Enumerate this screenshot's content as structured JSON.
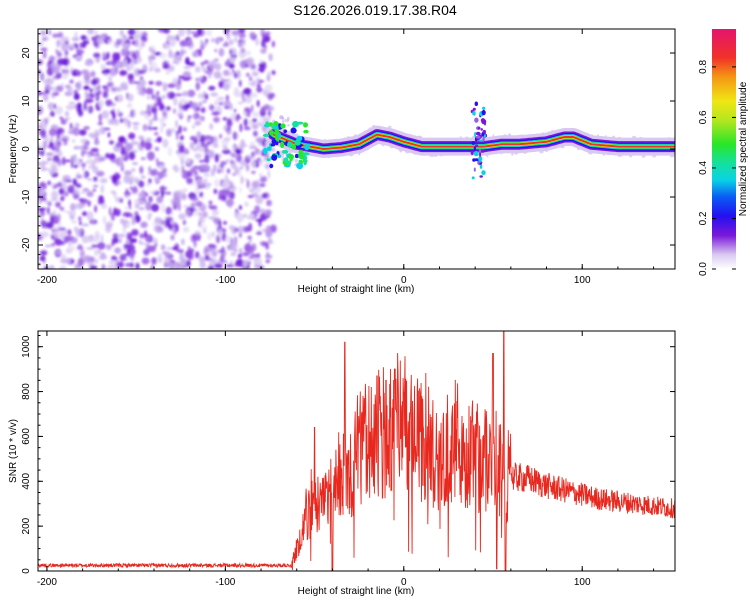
{
  "figure_title": "S126.2026.019.17.38.R04",
  "chart_data": [
    {
      "type": "heatmap",
      "title": "S126.2026.019.17.38.R04",
      "xlabel": "Height of straight line (km)",
      "ylabel": "Frequency (Hz)",
      "xlim": [
        -205,
        152
      ],
      "ylim": [
        -25,
        25
      ],
      "xticks": [
        -200,
        -100,
        0,
        100
      ],
      "xtick_labels": [
        "-200",
        "-100",
        "0",
        "100"
      ],
      "yticks": [
        -20,
        -10,
        0,
        10,
        20
      ],
      "ytick_labels": [
        "-20",
        "-10",
        "0",
        "10",
        "20"
      ],
      "noise_region_x": [
        -205,
        -73
      ],
      "ridge": {
        "x": [
          -73,
          -60,
          -45,
          -35,
          -25,
          -15,
          -8,
          0,
          10,
          20,
          30,
          35,
          40,
          45,
          55,
          65,
          80,
          90,
          95,
          105,
          120,
          135,
          150
        ],
        "freq": [
          3,
          1,
          0,
          0.3,
          1,
          3,
          2.5,
          1.5,
          0.5,
          0.5,
          0.5,
          0.5,
          0.5,
          0.5,
          1,
          1,
          1.5,
          2.5,
          2.5,
          1,
          0.5,
          0.5,
          0.5
        ]
      },
      "colorbar": {
        "label": "Normalized spectral amplitude",
        "range": [
          0.0,
          0.95
        ],
        "ticks": [
          0.0,
          0.2,
          0.4,
          0.6,
          0.8
        ],
        "tick_labels": [
          "0.0",
          "0.2",
          "0.4",
          "0.6",
          "0.8"
        ]
      }
    },
    {
      "type": "line",
      "xlabel": "Height of straight line (km)",
      "ylabel": "SNR (10 * v/v)",
      "xlim": [
        -205,
        152
      ],
      "ylim": [
        0,
        1070
      ],
      "xticks": [
        -200,
        -100,
        0,
        100
      ],
      "xtick_labels": [
        "-200",
        "-100",
        "0",
        "100"
      ],
      "yticks": [
        0,
        200,
        400,
        600,
        800,
        1000
      ],
      "ytick_labels": [
        "0",
        "200",
        "400",
        "600",
        "800",
        "1000"
      ],
      "color": "#e8281e",
      "envelope": {
        "x": [
          -205,
          -63,
          -58,
          -55,
          -50,
          -45,
          -40,
          -35,
          -30,
          -25,
          -20,
          -15,
          -10,
          -5,
          0,
          5,
          10,
          20,
          30,
          40,
          50,
          55,
          58,
          60,
          70,
          80,
          90,
          100,
          110,
          120,
          130,
          140,
          150
        ],
        "y": [
          25,
          25,
          150,
          250,
          300,
          280,
          350,
          450,
          450,
          550,
          560,
          630,
          600,
          680,
          650,
          600,
          560,
          530,
          520,
          510,
          480,
          470,
          420,
          420,
          410,
          380,
          360,
          340,
          320,
          310,
          300,
          290,
          280
        ]
      },
      "spikes": [
        {
          "x": -50,
          "y": 640
        },
        {
          "x": -33,
          "y": 1020
        },
        {
          "x": -15,
          "y": 870
        },
        {
          "x": -10,
          "y": 850
        },
        {
          "x": -5,
          "y": 900
        },
        {
          "x": 50,
          "y": 970
        },
        {
          "x": 56,
          "y": 1070
        }
      ],
      "dips": [
        {
          "x": -40,
          "y": 0
        },
        {
          "x": 52,
          "y": 10
        },
        {
          "x": 57,
          "y": 0
        }
      ]
    }
  ]
}
